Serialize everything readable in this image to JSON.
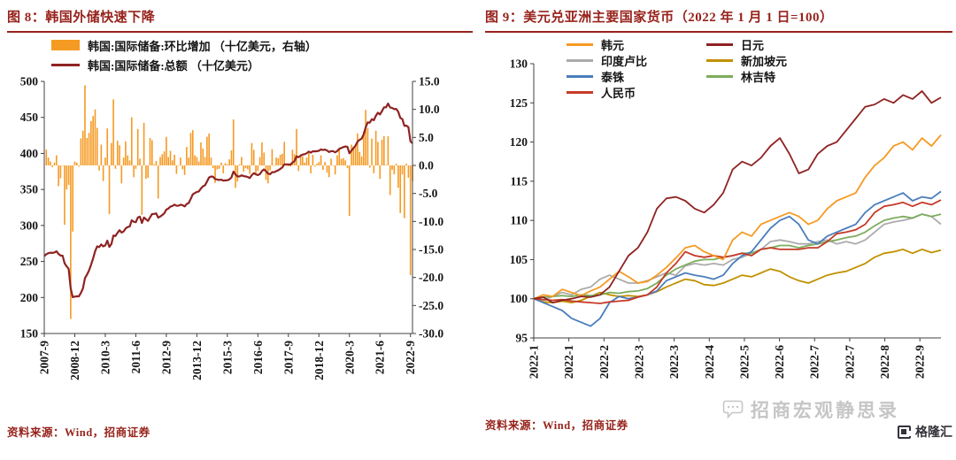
{
  "panels": {
    "left": {
      "title": "图 8：韩国外储快速下降",
      "source": "资料来源：Wind，招商证券"
    },
    "right": {
      "title": "图 9：美元兑亚洲主要国家货币（2022 年 1 月 1 日=100）",
      "source": "资料来源：Wind，招商证券"
    }
  },
  "watermark": {
    "text": "招商宏观静思录",
    "logo_text": "格隆汇"
  },
  "colors": {
    "accent_red": "#97231C",
    "bar_orange": "#F59A23",
    "line_dark_red": "#8E2322"
  },
  "chart_data": [
    {
      "type": "bar+line",
      "title": "韩国外储快速下降",
      "x_frequency": "monthly",
      "x_start": "2007-9",
      "x_end": "2022-10",
      "x_tick_indices": [
        0,
        15,
        30,
        45,
        60,
        75,
        90,
        105,
        120,
        135,
        150,
        165,
        180
      ],
      "x_tick_labels": [
        "2007-9",
        "2008-12",
        "2010-3",
        "2011-6",
        "2012-9",
        "2013-12",
        "2015-3",
        "2016-6",
        "2017-9",
        "2018-12",
        "2020-3",
        "2021-6",
        "2022-9"
      ],
      "left_axis": {
        "label": "总额（十亿美元）",
        "min": 150,
        "max": 500,
        "step": 50
      },
      "right_axis": {
        "label": "环比增加（十亿美元）",
        "min": -30,
        "max": 15,
        "step": 5
      },
      "series": [
        {
          "name": "韩国:国际储备:环比增加 （十亿美元，右轴）",
          "type": "bar",
          "axis": "right",
          "color": "#F59A23",
          "values": "derived: month-over-month difference of the 总额 series"
        },
        {
          "name": "韩国:国际储备:总额 （十亿美元）",
          "type": "line",
          "axis": "left",
          "color": "#8E2322",
          "values": [
            257.3,
            260.1,
            261.5,
            262.2,
            261.9,
            262.4,
            264.2,
            260.5,
            258.2,
            258.1,
            247.5,
            243.2,
            239.7,
            212.3,
            200.5,
            201.2,
            201.7,
            201.5,
            206.3,
            212.5,
            226.8,
            231.7,
            237.5,
            245.4,
            254.2,
            264.2,
            270.9,
            270.0,
            273.7,
            270.9,
            272.3,
            278.9,
            270.2,
            274.2,
            286.0,
            285.4,
            289.8,
            293.4,
            290.2,
            291.6,
            295.9,
            297.7,
            298.6,
            307.2,
            305.1,
            304.5,
            311.0,
            312.2,
            303.4,
            311.0,
            308.6,
            306.4,
            311.3,
            315.8,
            316.0,
            316.8,
            310.9,
            312.4,
            314.4,
            316.9,
            322.0,
            323.5,
            326.1,
            327.0,
            328.9,
            327.4,
            327.4,
            328.8,
            328.1,
            326.4,
            329.7,
            331.1,
            336.9,
            343.2,
            345.0,
            346.5,
            347.2,
            351.3,
            354.3,
            355.8,
            360.9,
            366.6,
            368.0,
            367.5,
            364.4,
            363.7,
            363.1,
            363.6,
            362.2,
            362.6,
            362.8,
            363.9,
            366.6,
            374.8,
            370.8,
            367.9,
            368.1,
            369.6,
            368.5,
            368.0,
            367.3,
            365.8,
            369.8,
            372.6,
            370.9,
            369.9,
            371.4,
            375.5,
            377.8,
            375.2,
            372.0,
            371.1,
            374.0,
            373.9,
            375.3,
            376.6,
            378.5,
            380.6,
            384.8,
            384.8,
            384.7,
            384.5,
            387.3,
            389.3,
            395.8,
            394.8,
            396.8,
            398.4,
            398.9,
            400.3,
            402.5,
            401.1,
            403.0,
            402.8,
            403.1,
            403.7,
            405.5,
            404.7,
            405.3,
            404.0,
            401.9,
            403.1,
            403.1,
            401.5,
            403.3,
            406.3,
            407.5,
            408.8,
            409.7,
            409.2,
            400.2,
            403.9,
            407.3,
            410.8,
            416.5,
            418.9,
            420.5,
            426.5,
            436.4,
            443.1,
            442.7,
            447.5,
            446.1,
            452.3,
            456.5,
            454.1,
            458.7,
            463.9,
            464.0,
            469.2,
            463.9,
            463.1,
            461.5,
            461.8,
            457.8,
            449.3,
            447.7,
            438.3,
            438.6,
            436.4,
            416.8,
            414.0
          ]
        }
      ]
    },
    {
      "type": "line",
      "title": "美元兑亚洲主要国家货币（2022年1月1日=100）",
      "x_frequency": "weekly",
      "x_start": "2022-01-01",
      "x_end": "2022-10-31",
      "x_tick_labels": [
        "2022-1",
        "2022-1",
        "2022-2",
        "2022-3",
        "2022-3",
        "2022-4",
        "2022-5",
        "2022-6",
        "2022-7",
        "2022-7",
        "2022-8",
        "2022-9"
      ],
      "ylim": [
        95,
        130
      ],
      "ystep": 5,
      "series": [
        {
          "name": "韩元",
          "color": "#F59A23",
          "values": [
            100,
            100.5,
            100.3,
            101.2,
            100.8,
            100.4,
            101,
            101.5,
            102.5,
            103.5,
            102.8,
            102,
            102.2,
            103,
            104,
            105.2,
            106.5,
            106.8,
            106,
            105.5,
            105,
            107.5,
            108.5,
            108,
            109.5,
            110,
            110.5,
            111,
            110.5,
            109.5,
            110,
            111.5,
            112.5,
            113,
            113.5,
            115.5,
            117,
            118,
            119.5,
            120,
            119,
            120.5,
            119.5,
            120.9
          ]
        },
        {
          "name": "日元",
          "color": "#8E2322",
          "values": [
            100,
            100.2,
            99.5,
            99.8,
            100,
            100.3,
            100.2,
            100.5,
            101.5,
            103.5,
            105.5,
            106.5,
            108.5,
            111.5,
            112.8,
            113,
            112.5,
            111.5,
            111,
            112,
            113.5,
            116.5,
            117.5,
            117,
            118,
            119.5,
            120.5,
            118.5,
            116,
            116.5,
            118.5,
            119.5,
            120,
            121.5,
            123,
            124.5,
            124.8,
            125.5,
            125,
            126,
            125.5,
            126.5,
            125,
            125.7
          ]
        },
        {
          "name": "印度卢比",
          "color": "#ABABAB",
          "values": [
            100,
            99.8,
            100.3,
            100.8,
            100.5,
            101.2,
            101.5,
            102.5,
            103,
            102.5,
            102,
            102,
            102.3,
            102.8,
            103.3,
            103,
            104.2,
            104.5,
            104.3,
            104.5,
            104.3,
            105,
            105.3,
            105.8,
            106.3,
            107.3,
            107.5,
            107.3,
            107,
            107,
            107.3,
            107.5,
            107,
            107.3,
            107,
            107.5,
            108.5,
            109.5,
            109.8,
            110,
            110.3,
            110.8,
            110.5,
            109.5
          ]
        },
        {
          "name": "新加坡元",
          "color": "#C09100",
          "values": [
            100,
            99.6,
            99.5,
            99.7,
            99.5,
            99.8,
            100.3,
            100.8,
            100.5,
            100.3,
            100.4,
            100.3,
            100.5,
            100.9,
            101.5,
            102,
            102.5,
            102.3,
            101.8,
            101.7,
            102,
            102.5,
            103,
            102.8,
            103.3,
            103.8,
            103.5,
            102.8,
            102.3,
            102,
            102.5,
            103,
            103.3,
            103.5,
            104,
            104.5,
            105.3,
            105.8,
            106,
            106.3,
            105.8,
            106.3,
            105.9,
            106.2
          ]
        },
        {
          "name": "泰铢",
          "color": "#4A7EBB",
          "values": [
            100,
            99.5,
            99,
            98.5,
            97.5,
            97,
            96.5,
            97.5,
            99.5,
            100.3,
            100,
            100.2,
            100.5,
            101,
            102.3,
            102.8,
            103.3,
            103,
            102.8,
            102.5,
            103,
            104.5,
            105.5,
            106,
            107.5,
            109,
            110,
            110.5,
            109.5,
            107.5,
            107,
            108,
            108.5,
            109,
            109.5,
            111,
            112,
            112.5,
            113,
            113.5,
            112.5,
            113,
            112.8,
            113.7
          ]
        },
        {
          "name": "林吉特",
          "color": "#7CAC5D",
          "values": [
            100,
            100.2,
            100.3,
            100.4,
            100.3,
            100.5,
            100.4,
            100.5,
            100.8,
            100.7,
            100.9,
            101,
            101.3,
            102,
            103,
            103.8,
            104.3,
            104.8,
            105,
            105,
            105.3,
            105.5,
            105.8,
            105.8,
            106.3,
            106.5,
            106.8,
            106.8,
            106.5,
            106.8,
            107,
            107.3,
            107.5,
            107.8,
            108,
            108.5,
            109.3,
            110,
            110.3,
            110.5,
            110.3,
            110.8,
            110.5,
            110.8
          ]
        },
        {
          "name": "人民币",
          "color": "#C53A28",
          "values": [
            100,
            99.9,
            99.8,
            99.9,
            99.7,
            99.6,
            99.5,
            99.4,
            99.6,
            99.7,
            99.8,
            100.2,
            100.5,
            101.5,
            103.3,
            104.5,
            106,
            105.5,
            105.3,
            105.5,
            105.3,
            105.5,
            105.8,
            105.5,
            106.3,
            106.5,
            106.3,
            106.3,
            106.3,
            106.5,
            106.5,
            107.3,
            108.3,
            108.5,
            108.8,
            109.5,
            111,
            111.8,
            112,
            112.3,
            111.8,
            112.3,
            112,
            112.6
          ]
        }
      ]
    }
  ]
}
